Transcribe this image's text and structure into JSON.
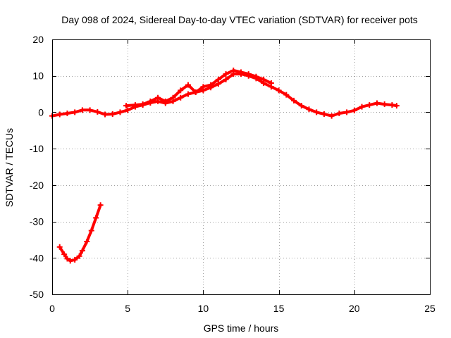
{
  "chart_data": {
    "type": "line",
    "title": "Day 098 of 2024, Sidereal Day-to-day VTEC variation (SDTVAR) for receiver pots",
    "xlabel": "GPS time / hours",
    "ylabel": "SDTVAR / TECUs",
    "xlim": [
      0,
      25
    ],
    "ylim": [
      -50,
      20
    ],
    "xticks": [
      0,
      5,
      10,
      15,
      20,
      25
    ],
    "yticks": [
      -50,
      -40,
      -30,
      -20,
      -10,
      0,
      10,
      20
    ],
    "xtick_labels": [
      "0",
      "5",
      "10",
      "15",
      "20",
      "25"
    ],
    "ytick_labels": [
      "-50",
      "-40",
      "-30",
      "-20",
      "-10",
      "0",
      "10",
      "20"
    ],
    "grid": true,
    "color": "#ff0000",
    "series": [
      {
        "name": "main",
        "x": [
          0.0,
          0.5,
          1.0,
          1.5,
          2.0,
          2.5,
          3.0,
          3.5,
          4.0,
          4.5,
          5.0,
          5.5,
          6.0,
          6.5,
          7.0,
          7.5,
          8.0,
          8.5,
          9.0,
          9.5,
          10.0,
          10.5,
          11.0,
          11.5,
          12.0,
          12.5,
          13.0,
          13.5,
          14.0,
          14.5,
          15.0,
          15.5,
          16.0,
          16.5,
          17.0,
          17.5,
          18.0,
          18.5,
          19.0,
          19.5,
          20.0,
          20.5,
          21.0,
          21.5,
          22.0,
          22.5,
          22.8
        ],
        "y": [
          -1.0,
          -0.6,
          -0.3,
          0.0,
          0.6,
          0.6,
          0.1,
          -0.6,
          -0.5,
          0.0,
          0.6,
          1.5,
          2.0,
          2.6,
          3.0,
          2.5,
          3.0,
          4.0,
          5.0,
          5.5,
          6.0,
          6.8,
          7.8,
          9.0,
          10.5,
          10.5,
          10.0,
          9.3,
          8.0,
          7.0,
          6.0,
          4.8,
          3.2,
          1.8,
          0.8,
          0.0,
          -0.5,
          -1.0,
          -0.3,
          0.0,
          0.5,
          1.5,
          2.0,
          2.5,
          2.2,
          2.0,
          1.8
        ]
      },
      {
        "name": "secondary",
        "x": [
          4.9,
          5.5,
          6.0,
          6.5,
          7.0,
          7.5,
          8.0,
          8.5,
          9.0,
          9.5,
          10.0,
          10.5,
          11.0,
          11.5,
          12.0,
          12.5,
          13.0,
          13.5,
          14.0,
          14.5
        ],
        "y": [
          1.8,
          2.0,
          2.2,
          3.0,
          4.0,
          3.0,
          4.0,
          6.0,
          7.5,
          5.5,
          7.0,
          7.5,
          9.0,
          10.5,
          11.5,
          11.0,
          10.5,
          9.8,
          9.0,
          8.0
        ]
      },
      {
        "name": "low-arc",
        "x": [
          0.5,
          0.8,
          1.0,
          1.2,
          1.5,
          1.8,
          2.0,
          2.3,
          2.6,
          2.9,
          3.2
        ],
        "y": [
          -37.0,
          -39.0,
          -40.2,
          -40.8,
          -40.5,
          -39.5,
          -38.0,
          -35.5,
          -32.5,
          -29.0,
          -25.5
        ]
      }
    ]
  }
}
